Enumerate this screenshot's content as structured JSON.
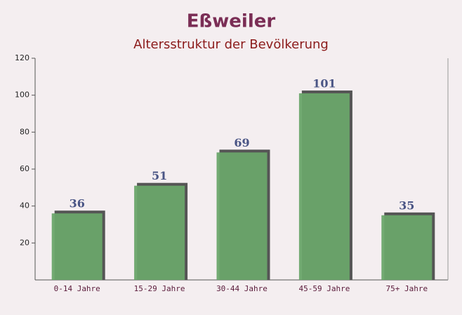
{
  "chart_data": {
    "type": "bar",
    "title": "Eßweiler",
    "subtitle": "Altersstruktur der Bevölkerung",
    "categories": [
      "0-14 Jahre",
      "15-29 Jahre",
      "30-44 Jahre",
      "45-59 Jahre",
      "75+ Jahre"
    ],
    "values": [
      36,
      51,
      69,
      101,
      35
    ],
    "color": "#6aa56a",
    "ylim": [
      0,
      120
    ],
    "yticks": [
      20,
      40,
      60,
      80,
      100,
      120
    ],
    "grid": false
  }
}
